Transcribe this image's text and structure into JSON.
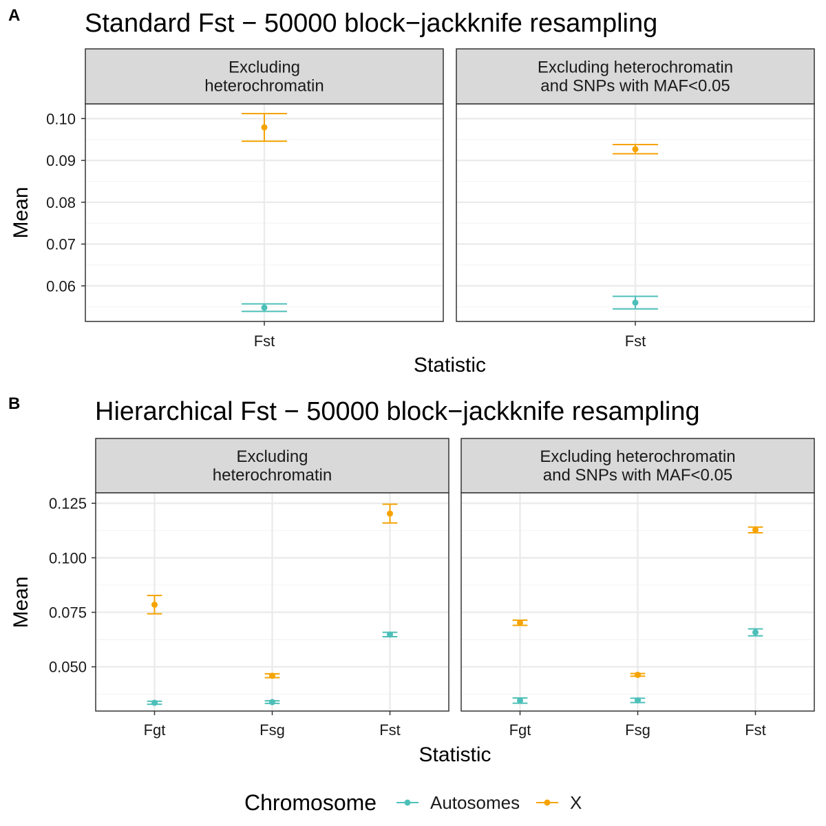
{
  "chart_data": [
    {
      "type": "errorbar",
      "panel_label": "A",
      "title": "Standard Fst − 50000 block−jackknife resampling",
      "xlabel": "Statistic",
      "ylabel": "Mean",
      "ylim": [
        0.0515,
        0.1035
      ],
      "yticks": [
        0.06,
        0.07,
        0.08,
        0.09,
        0.1
      ],
      "ytick_labels": [
        "0.06",
        "0.07",
        "0.08",
        "0.09",
        "0.10"
      ],
      "categories": [
        "Fst"
      ],
      "facets": [
        {
          "label": "Excluding\nheterochromatin",
          "series": [
            {
              "name": "Autosomes",
              "points": [
                {
                  "x": "Fst",
                  "mean": 0.0548,
                  "lower": 0.0539,
                  "upper": 0.0557
                }
              ]
            },
            {
              "name": "X",
              "points": [
                {
                  "x": "Fst",
                  "mean": 0.0979,
                  "lower": 0.0946,
                  "upper": 0.1012
                }
              ]
            }
          ]
        },
        {
          "label": "Excluding heterochromatin\nand SNPs with MAF<0.05",
          "series": [
            {
              "name": "Autosomes",
              "points": [
                {
                  "x": "Fst",
                  "mean": 0.056,
                  "lower": 0.0545,
                  "upper": 0.0575
                }
              ]
            },
            {
              "name": "X",
              "points": [
                {
                  "x": "Fst",
                  "mean": 0.0927,
                  "lower": 0.0916,
                  "upper": 0.0938
                }
              ]
            }
          ]
        }
      ]
    },
    {
      "type": "errorbar",
      "panel_label": "B",
      "title": "Hierarchical Fst − 50000 block−jackknife resampling",
      "xlabel": "Statistic",
      "ylabel": "Mean",
      "ylim": [
        0.0297,
        0.1298
      ],
      "yticks": [
        0.05,
        0.075,
        0.1,
        0.125
      ],
      "ytick_labels": [
        "0.050",
        "0.075",
        "0.100",
        "0.125"
      ],
      "categories": [
        "Fgt",
        "Fsg",
        "Fst"
      ],
      "facets": [
        {
          "label": "Excluding\nheterochromatin",
          "series": [
            {
              "name": "Autosomes",
              "points": [
                {
                  "x": "Fgt",
                  "mean": 0.0335,
                  "lower": 0.0328,
                  "upper": 0.0342
                },
                {
                  "x": "Fsg",
                  "mean": 0.0338,
                  "lower": 0.0332,
                  "upper": 0.0344
                },
                {
                  "x": "Fst",
                  "mean": 0.0648,
                  "lower": 0.0638,
                  "upper": 0.0658
                }
              ]
            },
            {
              "name": "X",
              "points": [
                {
                  "x": "Fgt",
                  "mean": 0.0785,
                  "lower": 0.0743,
                  "upper": 0.0827
                },
                {
                  "x": "Fsg",
                  "mean": 0.0459,
                  "lower": 0.045,
                  "upper": 0.0468
                },
                {
                  "x": "Fst",
                  "mean": 0.1203,
                  "lower": 0.116,
                  "upper": 0.1246
                }
              ]
            }
          ]
        },
        {
          "label": "Excluding heterochromatin\nand SNPs with MAF<0.05",
          "series": [
            {
              "name": "Autosomes",
              "points": [
                {
                  "x": "Fgt",
                  "mean": 0.0345,
                  "lower": 0.0333,
                  "upper": 0.0357
                },
                {
                  "x": "Fsg",
                  "mean": 0.0346,
                  "lower": 0.0336,
                  "upper": 0.0356
                },
                {
                  "x": "Fst",
                  "mean": 0.0658,
                  "lower": 0.0642,
                  "upper": 0.0674
                }
              ]
            },
            {
              "name": "X",
              "points": [
                {
                  "x": "Fgt",
                  "mean": 0.0702,
                  "lower": 0.069,
                  "upper": 0.0714
                },
                {
                  "x": "Fsg",
                  "mean": 0.0463,
                  "lower": 0.0457,
                  "upper": 0.0469
                },
                {
                  "x": "Fst",
                  "mean": 0.1128,
                  "lower": 0.1115,
                  "upper": 0.1141
                }
              ]
            }
          ]
        }
      ]
    }
  ],
  "legend": {
    "title": "Chromosome",
    "position": "bottom",
    "entries": [
      {
        "name": "Autosomes",
        "color": "#4DBFB8"
      },
      {
        "name": "X",
        "color": "#F5A300"
      }
    ]
  },
  "colors": {
    "Autosomes": "#4DBFB8",
    "X": "#F5A300",
    "strip_bg": "#D9D9D9",
    "grid_major": "#EBEBEB",
    "grid_minor": "#F4F4F4",
    "border": "#333333"
  },
  "grid": true
}
